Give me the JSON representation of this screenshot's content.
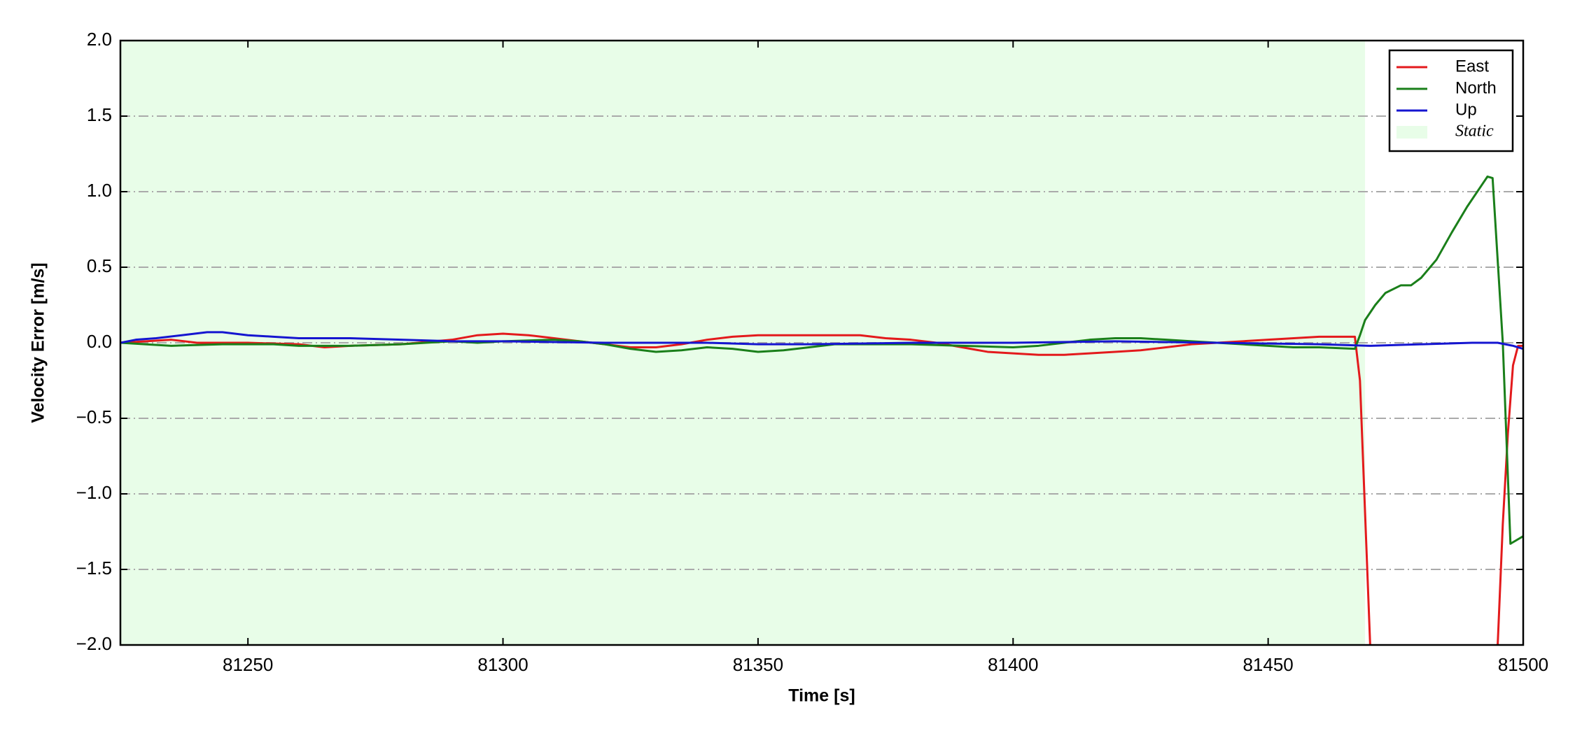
{
  "chart_data": {
    "type": "line",
    "x_label": "Time [s]",
    "y_label": "Velocity Error [m/s]",
    "xlim": [
      81225,
      81500
    ],
    "ylim": [
      -2.0,
      2.0
    ],
    "xticks": [
      81250,
      81300,
      81350,
      81400,
      81450,
      81500
    ],
    "yticks": [
      {
        "value": -2.0,
        "label": "−2.0"
      },
      {
        "value": -1.5,
        "label": "−1.5"
      },
      {
        "value": -1.0,
        "label": "−1.0"
      },
      {
        "value": -0.5,
        "label": "−0.5"
      },
      {
        "value": 0.0,
        "label": "0.0"
      },
      {
        "value": 0.5,
        "label": "0.5"
      },
      {
        "value": 1.0,
        "label": "1.0"
      },
      {
        "value": 1.5,
        "label": "1.5"
      },
      {
        "value": 2.0,
        "label": "2.0"
      }
    ],
    "grid": true,
    "legend": "upper right",
    "shaded_regions": [
      {
        "name": "Static",
        "color": "#e8fde8",
        "x": [
          81225,
          81469
        ]
      }
    ],
    "series": [
      {
        "name": "East",
        "color": "#e31a1c",
        "x": [
          81225,
          81230,
          81235,
          81240,
          81250,
          81260,
          81265,
          81270,
          81280,
          81290,
          81295,
          81300,
          81305,
          81310,
          81315,
          81320,
          81325,
          81330,
          81335,
          81340,
          81345,
          81350,
          81355,
          81360,
          81370,
          81375,
          81380,
          81385,
          81390,
          81395,
          81400,
          81405,
          81410,
          81415,
          81420,
          81425,
          81430,
          81435,
          81440,
          81445,
          81450,
          81455,
          81460,
          81467,
          81468,
          81470,
          81471,
          81494,
          81495,
          81496,
          81497,
          81498,
          81499,
          81500
        ],
        "values": [
          0,
          0.01,
          0.02,
          0.0,
          0.0,
          -0.01,
          -0.03,
          -0.02,
          -0.01,
          0.02,
          0.05,
          0.06,
          0.05,
          0.03,
          0.01,
          -0.01,
          -0.03,
          -0.03,
          -0.01,
          0.02,
          0.04,
          0.05,
          0.05,
          0.05,
          0.05,
          0.03,
          0.02,
          0.0,
          -0.03,
          -0.06,
          -0.07,
          -0.08,
          -0.08,
          -0.07,
          -0.06,
          -0.05,
          -0.03,
          -0.01,
          0.0,
          0.01,
          0.02,
          0.03,
          0.04,
          0.04,
          -0.25,
          -2.0,
          -2.5,
          -2.5,
          -2.0,
          -1.2,
          -0.6,
          -0.15,
          -0.02,
          -0.02
        ]
      },
      {
        "name": "North",
        "color": "#1a7f1a",
        "x": [
          81225,
          81235,
          81245,
          81255,
          81260,
          81270,
          81280,
          81290,
          81295,
          81300,
          81310,
          81315,
          81320,
          81325,
          81330,
          81335,
          81340,
          81345,
          81350,
          81355,
          81360,
          81365,
          81370,
          81380,
          81390,
          81400,
          81405,
          81410,
          81415,
          81420,
          81425,
          81430,
          81435,
          81440,
          81445,
          81450,
          81455,
          81460,
          81467,
          81468,
          81469,
          81471,
          81473,
          81476,
          81478,
          81480,
          81483,
          81486,
          81489,
          81492,
          81493,
          81494,
          81496,
          81497.5,
          81500
        ],
        "values": [
          0,
          -0.02,
          -0.01,
          -0.01,
          -0.02,
          -0.02,
          -0.01,
          0.01,
          0.0,
          0.01,
          0.02,
          0.01,
          -0.01,
          -0.04,
          -0.06,
          -0.05,
          -0.03,
          -0.04,
          -0.06,
          -0.05,
          -0.03,
          -0.01,
          -0.01,
          -0.01,
          -0.02,
          -0.03,
          -0.02,
          0.0,
          0.02,
          0.03,
          0.03,
          0.02,
          0.01,
          0.0,
          -0.01,
          -0.02,
          -0.03,
          -0.03,
          -0.04,
          0.05,
          0.15,
          0.25,
          0.33,
          0.38,
          0.38,
          0.43,
          0.55,
          0.73,
          0.9,
          1.05,
          1.1,
          1.09,
          0.0,
          -1.33,
          -1.28
        ]
      },
      {
        "name": "Up",
        "color": "#1515d0",
        "x": [
          81225,
          81228,
          81232,
          81237,
          81242,
          81245,
          81250,
          81255,
          81260,
          81270,
          81280,
          81290,
          81300,
          81320,
          81340,
          81350,
          81360,
          81380,
          81400,
          81420,
          81440,
          81460,
          81470,
          81480,
          81490,
          81495,
          81498,
          81500
        ],
        "values": [
          0,
          0.02,
          0.03,
          0.05,
          0.07,
          0.07,
          0.05,
          0.04,
          0.03,
          0.03,
          0.02,
          0.01,
          0.01,
          0.0,
          0.0,
          -0.01,
          -0.01,
          0.0,
          0.0,
          0.01,
          0.0,
          -0.01,
          -0.02,
          -0.01,
          0.0,
          0.0,
          -0.02,
          -0.04
        ]
      }
    ]
  }
}
